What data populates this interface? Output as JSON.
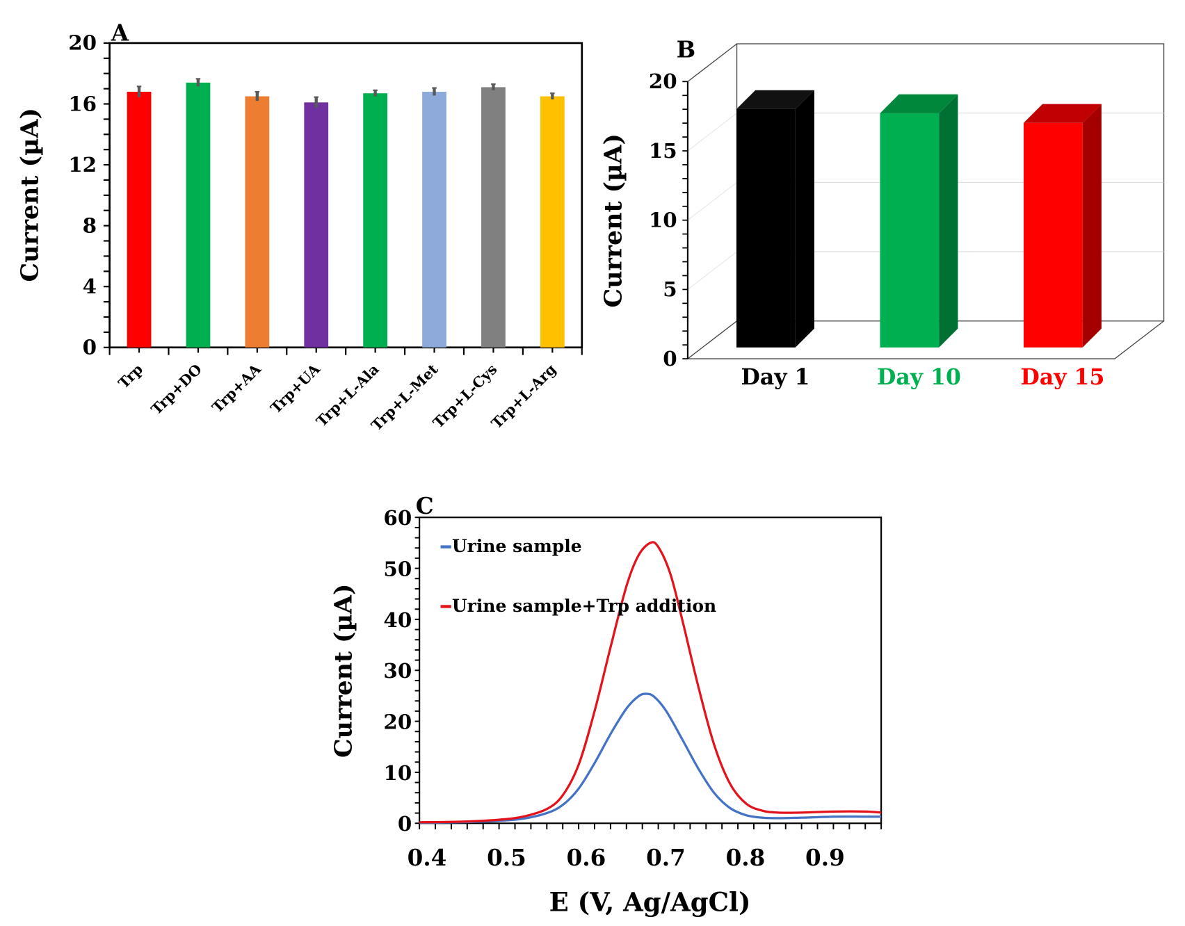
{
  "chart_data": [
    {
      "panel": "A",
      "type": "bar",
      "panel_label": "A",
      "ylabel": "Current (µA)",
      "xlabel": "",
      "ylim": [
        0,
        20
      ],
      "yticks": [
        0,
        4,
        8,
        12,
        16,
        20
      ],
      "ytick_labels": [
        "0",
        "4",
        "8",
        "12",
        "16",
        "20"
      ],
      "grid": false,
      "error_bars": true,
      "categories": [
        "Trp",
        "Trp+DO",
        "Trp+AA",
        "Trp+UA",
        "Trp+L-Ala",
        "Trp+L-Met",
        "Trp+L-Cys",
        "Trp+L-Arg"
      ],
      "values": [
        16.8,
        17.4,
        16.5,
        16.1,
        16.7,
        16.8,
        17.1,
        16.5
      ],
      "errors": [
        0.35,
        0.25,
        0.3,
        0.35,
        0.2,
        0.25,
        0.2,
        0.2
      ],
      "colors": [
        "#ff0000",
        "#00b050",
        "#ed7d31",
        "#7030a0",
        "#00b050",
        "#8eaadb",
        "#808080",
        "#ffc000"
      ]
    },
    {
      "panel": "B",
      "type": "bar",
      "style": "3d",
      "panel_label": "B",
      "ylabel": "Current (µA)",
      "xlabel": "",
      "ylim": [
        0,
        20
      ],
      "yticks": [
        0,
        5,
        10,
        15,
        20
      ],
      "ytick_labels": [
        "0",
        "5",
        "10",
        "15",
        "20"
      ],
      "grid": true,
      "categories": [
        "Day 1",
        "Day 10",
        "Day 15"
      ],
      "values": [
        17.2,
        16.9,
        16.2
      ],
      "colors": [
        "#000000",
        "#00b050",
        "#ff0000"
      ],
      "side_colors": [
        "#000000",
        "#007033",
        "#a50000"
      ],
      "top_colors": [
        "#111111",
        "#00873c",
        "#c00000"
      ],
      "label_colors": [
        "#000000",
        "#00b050",
        "#ff0000"
      ]
    },
    {
      "panel": "C",
      "type": "line",
      "panel_label": "C",
      "ylabel": "Current (µA)",
      "xlabel": "E (V, Ag/AgCl)",
      "xlim": [
        0.4,
        0.98
      ],
      "ylim": [
        0,
        60
      ],
      "xticks": [
        0.4,
        0.5,
        0.6,
        0.7,
        0.8,
        0.9
      ],
      "xtick_labels": [
        "0.4",
        "0.5",
        "0.6",
        "0.7",
        "0.8",
        "0.9"
      ],
      "yticks": [
        0,
        10,
        20,
        30,
        40,
        50,
        60
      ],
      "ytick_labels": [
        "0",
        "10",
        "20",
        "30",
        "40",
        "50",
        "60"
      ],
      "grid": false,
      "legend_position": "top-left",
      "series": [
        {
          "name": "Urine sample",
          "color": "#4472c4",
          "x": [
            0.4,
            0.45,
            0.5,
            0.53,
            0.56,
            0.58,
            0.6,
            0.62,
            0.64,
            0.66,
            0.675,
            0.685,
            0.695,
            0.71,
            0.73,
            0.75,
            0.77,
            0.79,
            0.81,
            0.83,
            0.85,
            0.88,
            0.92,
            0.96,
            0.98
          ],
          "y": [
            0.1,
            0.2,
            0.5,
            0.9,
            2.0,
            3.6,
            6.8,
            11.8,
            17.5,
            22.5,
            24.9,
            25.4,
            24.8,
            22.0,
            16.5,
            10.8,
            6.0,
            3.0,
            1.6,
            1.1,
            1.0,
            1.1,
            1.3,
            1.3,
            1.3
          ]
        },
        {
          "name": "Urine sample+Trp addition",
          "color": "#e4131b",
          "x": [
            0.4,
            0.45,
            0.5,
            0.53,
            0.56,
            0.58,
            0.6,
            0.62,
            0.64,
            0.66,
            0.675,
            0.69,
            0.7,
            0.715,
            0.73,
            0.75,
            0.77,
            0.79,
            0.81,
            0.83,
            0.85,
            0.88,
            0.92,
            0.96,
            0.98
          ],
          "y": [
            0.2,
            0.3,
            0.7,
            1.3,
            2.8,
            5.5,
            11.5,
            22.0,
            34.5,
            46.5,
            52.5,
            55.0,
            54.2,
            49.0,
            40.0,
            27.0,
            15.5,
            7.8,
            3.9,
            2.5,
            2.1,
            2.1,
            2.3,
            2.3,
            2.1
          ]
        }
      ]
    }
  ]
}
